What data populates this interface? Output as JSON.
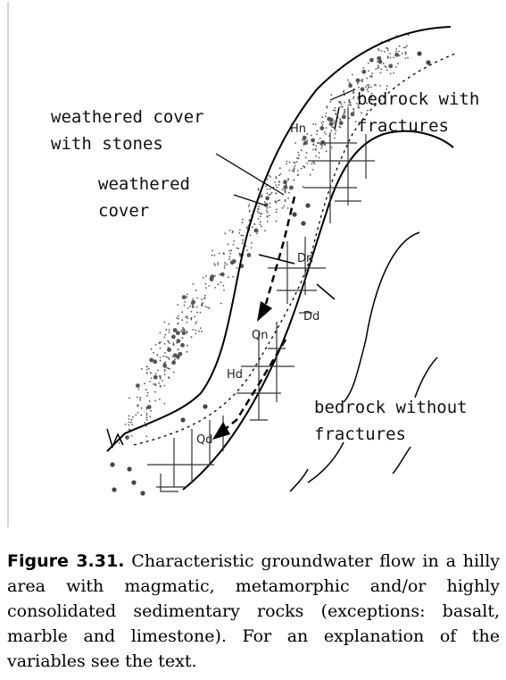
{
  "diagram": {
    "labels": {
      "weathered_cover_with_stones_1": "weathered cover",
      "weathered_cover_with_stones_2": "with stones",
      "weathered_cover_1": "weathered",
      "weathered_cover_2": "cover",
      "bedrock_with_fractures_1": "bedrock with",
      "bedrock_with_fractures_2": "fractures",
      "bedrock_without_fractures_1": "bedrock without",
      "bedrock_without_fractures_2": "fractures"
    },
    "variables": {
      "Hn": "Hn",
      "Dn": "Dn",
      "Dd": "Dd",
      "Qn": "Qn",
      "Hd": "Hd",
      "Qd": "Qd"
    }
  },
  "caption": {
    "label": "Figure 3.31.",
    "text": "Characteristic groundwater flow in a hilly area with magmatic, metamorphic and/or highly consolidated sedimentary rocks (exceptions: basalt, marble and limestone). For an explanation of the variables see the text."
  }
}
